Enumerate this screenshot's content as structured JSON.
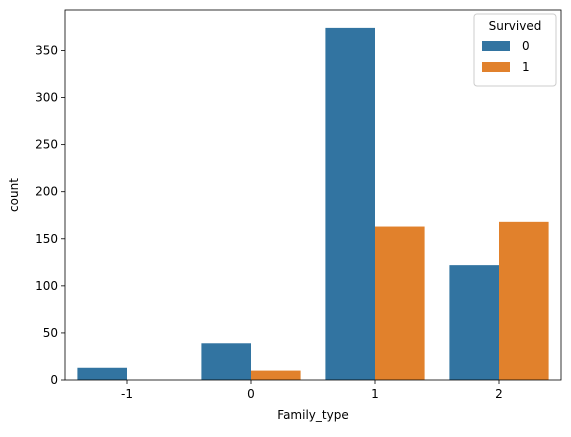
{
  "chart_data": {
    "type": "bar",
    "title": "",
    "xlabel": "Family_type",
    "ylabel": "count",
    "categories": [
      "-1",
      "0",
      "1",
      "2"
    ],
    "series": [
      {
        "name": "0",
        "values": [
          13,
          39,
          374,
          122
        ],
        "color": "#3274a1"
      },
      {
        "name": "1",
        "values": [
          0,
          10,
          163,
          168
        ],
        "color": "#e1812c"
      }
    ],
    "ylim": [
      0,
      393
    ],
    "yticks": [
      0,
      50,
      100,
      150,
      200,
      250,
      300,
      350
    ],
    "grid": false,
    "legend": {
      "title": "Survived",
      "placement": "top-right"
    }
  }
}
